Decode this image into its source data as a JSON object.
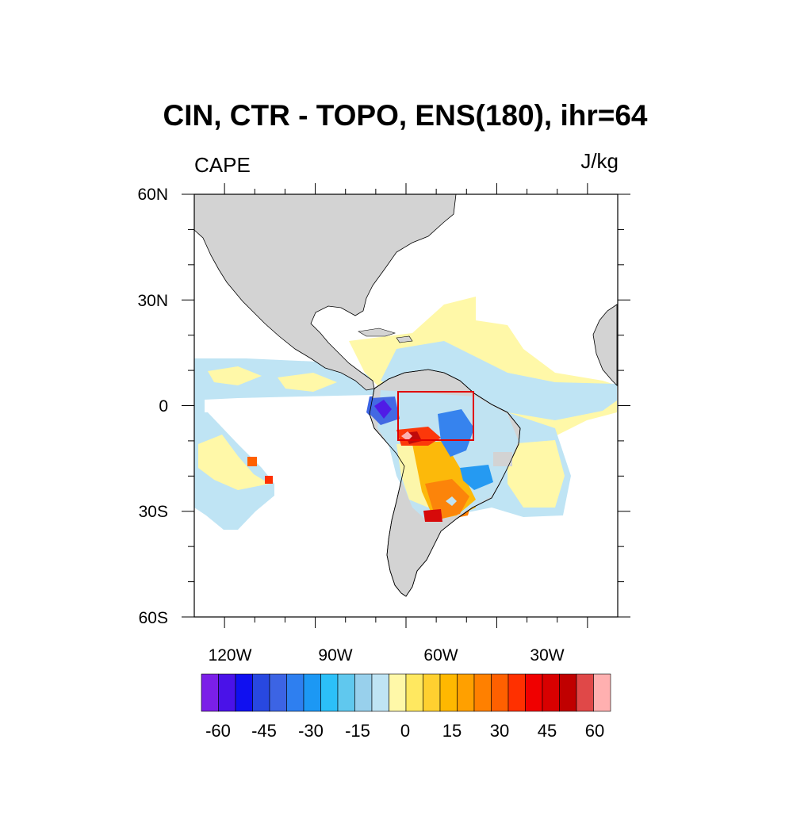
{
  "title": "CIN, CTR - TOPO, ENS(180), ihr=64",
  "left_subtitle": "CAPE",
  "right_subtitle": "J/kg",
  "lat_labels": [
    "60N",
    "30N",
    "0",
    "30S",
    "60S"
  ],
  "lon_labels": [
    "120W",
    "90W",
    "60W",
    "30W"
  ],
  "colorbar": {
    "labels": [
      "-60",
      "-45",
      "-30",
      "-15",
      "0",
      "15",
      "30",
      "45",
      "60"
    ],
    "colors": [
      "#7b1fe8",
      "#4a12e8",
      "#1010f0",
      "#2848e0",
      "#3c64e4",
      "#2e7ff0",
      "#1c98f4",
      "#2cc0f8",
      "#60c8ee",
      "#98d0ec",
      "#bfe4f4",
      "#fff8a8",
      "#ffe860",
      "#ffd030",
      "#ffb800",
      "#ffa000",
      "#ff8000",
      "#ff6000",
      "#ff3000",
      "#f00000",
      "#d80000",
      "#c00000",
      "#e04848",
      "#ffb0b0"
    ]
  },
  "colors": {
    "land": "#d3d3d3",
    "box_outline": "#e00000"
  },
  "chart_data": {
    "type": "heatmap",
    "title": "CIN, CTR - TOPO, ENS(180), ihr=64",
    "variable": "CAPE",
    "units": "J/kg",
    "projection": "cylindrical equidistant",
    "lon_range": [
      -130,
      10
    ],
    "lat_range": [
      -60,
      60
    ],
    "colorbar_range": [
      -60,
      60
    ],
    "colorbar_step": 5,
    "box_region": {
      "lon": [
        -72,
        -51
      ],
      "lat": [
        -10,
        4
      ]
    }
  }
}
